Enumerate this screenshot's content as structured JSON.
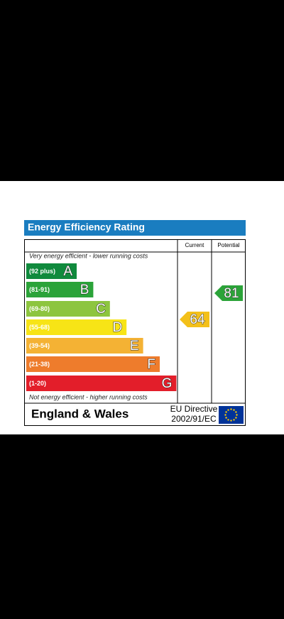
{
  "title": "Energy Efficiency Rating",
  "columns": {
    "current": "Current",
    "potential": "Potential"
  },
  "top_note": "Very energy efficient - lower running costs",
  "bottom_note": "Not energy efficient - higher running costs",
  "bands": [
    {
      "range": "(92 plus)",
      "letter": "A",
      "color": "#108a3d"
    },
    {
      "range": "(81-91)",
      "letter": "B",
      "color": "#2ba339"
    },
    {
      "range": "(69-80)",
      "letter": "C",
      "color": "#8dc53f"
    },
    {
      "range": "(55-68)",
      "letter": "D",
      "color": "#f7e416"
    },
    {
      "range": "(39-54)",
      "letter": "E",
      "color": "#f4b234"
    },
    {
      "range": "(21-38)",
      "letter": "F",
      "color": "#ee7c2c"
    },
    {
      "range": "(1-20)",
      "letter": "G",
      "color": "#e31e2a"
    }
  ],
  "current": {
    "value": 64,
    "color": "#f3c01a"
  },
  "potential": {
    "value": 81,
    "color": "#2ba339"
  },
  "footer": {
    "region": "England & Wales",
    "directive_line1": "EU Directive",
    "directive_line2": "2002/91/EC"
  }
}
